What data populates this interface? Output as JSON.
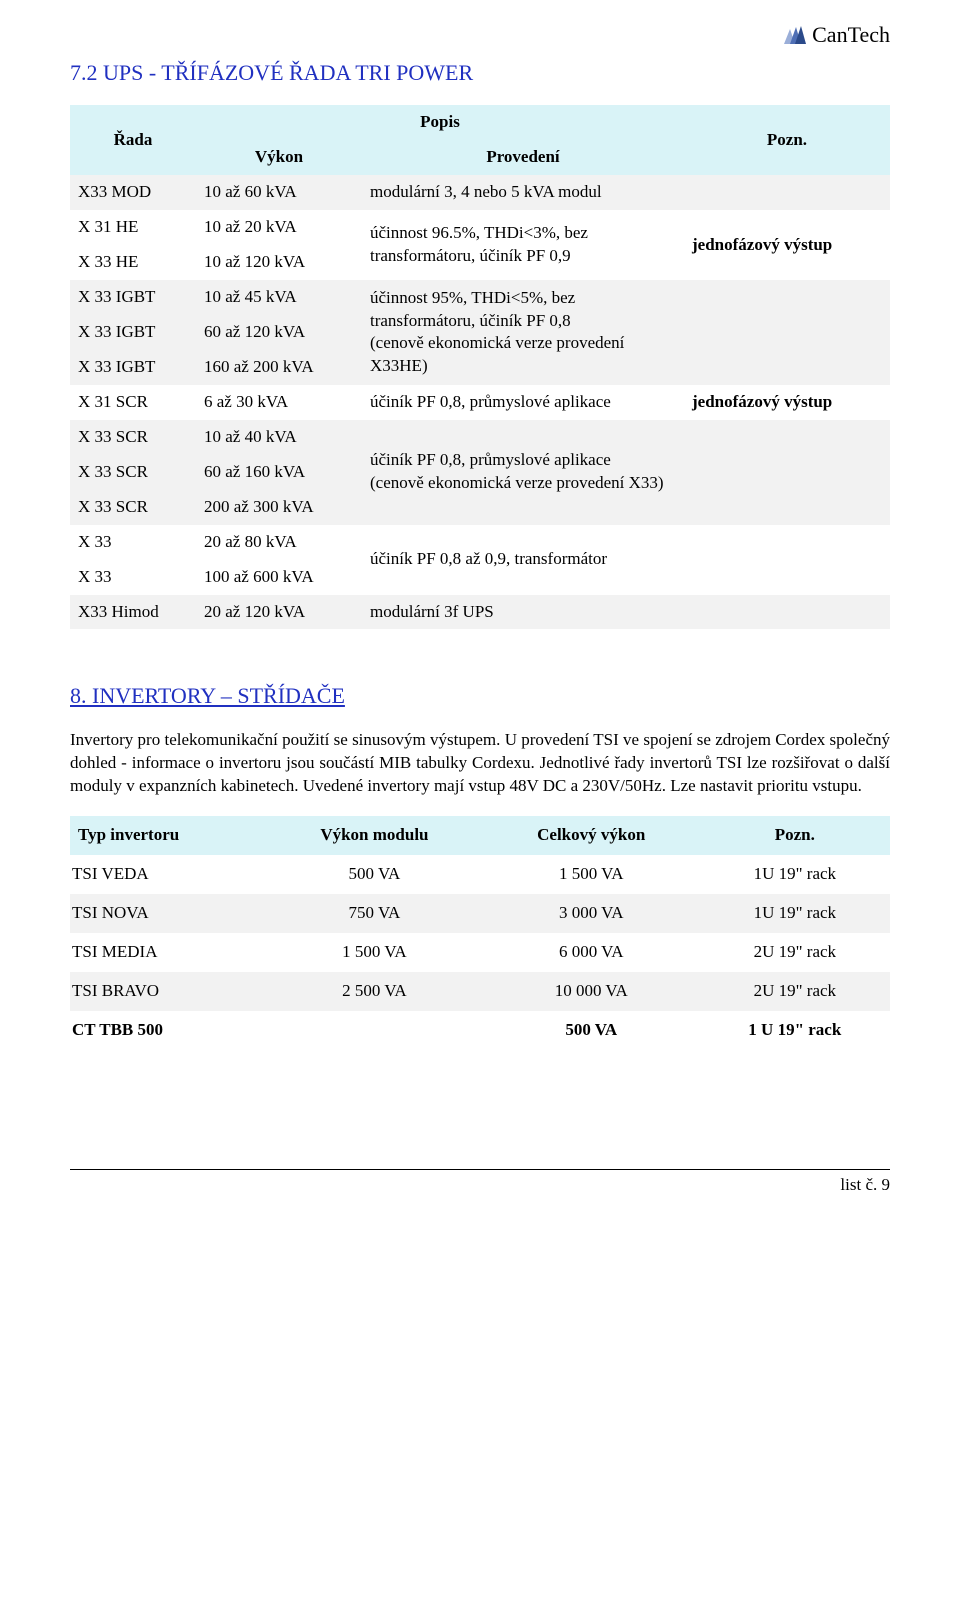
{
  "brand": {
    "name": "CanTech",
    "logo_colors": [
      "#2b4a8a",
      "#4f6fb5",
      "#9aaed8"
    ]
  },
  "section1": {
    "title": "7.2 UPS - TŘÍFÁZOVÉ ŘADA TRI POWER",
    "header": {
      "rada": "Řada",
      "popis": "Popis",
      "vykon": "Výkon",
      "provedeni": "Provedení",
      "pozn": "Pozn."
    },
    "groups": [
      {
        "shade": "odd",
        "rows": [
          {
            "rada": "X33 MOD",
            "vykon": "10 až 60 kVA"
          }
        ],
        "prov": "modulární 3, 4 nebo 5 kVA modul",
        "pozn": ""
      },
      {
        "shade": "even",
        "rows": [
          {
            "rada": "X 31 HE",
            "vykon": "10 až 20 kVA"
          },
          {
            "rada": "X 33 HE",
            "vykon": "10 až 120 kVA"
          }
        ],
        "prov": "účinnost 96.5%, THDi<3%, bez transformátoru, účiník PF 0,9",
        "pozn": "jednofázový výstup",
        "pozn_bold": true
      },
      {
        "shade": "odd",
        "rows": [
          {
            "rada": "X 33 IGBT",
            "vykon": "10 až 45 kVA"
          },
          {
            "rada": "X 33 IGBT",
            "vykon": "60 až 120 kVA"
          },
          {
            "rada": "X 33 IGBT",
            "vykon": "160 až 200 kVA"
          }
        ],
        "prov": "účinnost 95%, THDi<5%, bez transformátoru, účiník PF 0,8\n(cenově ekonomická verze provedení X33HE)",
        "pozn": ""
      },
      {
        "shade": "even",
        "rows": [
          {
            "rada": "X 31 SCR",
            "vykon": "6 až 30 kVA"
          }
        ],
        "prov": "účiník PF 0,8, průmyslové aplikace",
        "pozn": "jednofázový výstup",
        "pozn_bold": true
      },
      {
        "shade": "odd",
        "rows": [
          {
            "rada": "X 33 SCR",
            "vykon": "10 až 40 kVA"
          },
          {
            "rada": "X 33 SCR",
            "vykon": "60 až 160 kVA"
          },
          {
            "rada": "X 33 SCR",
            "vykon": "200 až 300 kVA"
          }
        ],
        "prov": "účiník PF 0,8, průmyslové aplikace\n(cenově ekonomická verze provedení X33)",
        "pozn": ""
      },
      {
        "shade": "even",
        "rows": [
          {
            "rada": "X 33",
            "vykon": "20 až 80 kVA"
          },
          {
            "rada": "X 33",
            "vykon": "100 až 600 kVA"
          }
        ],
        "prov": "účiník PF 0,8 až 0,9, transformátor",
        "pozn": ""
      },
      {
        "shade": "odd",
        "rows": [
          {
            "rada": "X33 Himod",
            "vykon": "20 až 120 kVA"
          }
        ],
        "prov": "modulární 3f UPS",
        "pozn": ""
      }
    ]
  },
  "section2": {
    "title": "8. INVERTORY – STŘÍDAČE",
    "body": "Invertory pro telekomunikační použití se sinusovým výstupem. U provedení TSI ve spojení se zdrojem Cordex společný dohled - informace o invertoru jsou součástí MIB tabulky Cordexu. Jednotlivé řady invertorů TSI lze rozšiřovat o další moduly v expanzních kabinetech. Uvedené invertory mají vstup 48V DC a 230V/50Hz. Lze nastavit prioritu vstupu.",
    "columns": [
      "Typ invertoru",
      "Výkon modulu",
      "Celkový výkon",
      "Pozn."
    ],
    "rows": [
      {
        "cells": [
          "TSI VEDA",
          "500 VA",
          "1 500 VA",
          "1U 19\" rack"
        ],
        "bold": false
      },
      {
        "cells": [
          "TSI NOVA",
          "750 VA",
          "3 000 VA",
          "1U 19\" rack"
        ],
        "bold": false
      },
      {
        "cells": [
          "TSI MEDIA",
          "1 500 VA",
          "6 000 VA",
          "2U 19\" rack"
        ],
        "bold": false
      },
      {
        "cells": [
          "TSI BRAVO",
          "2 500 VA",
          "10 000 VA",
          "2U 19\" rack"
        ],
        "bold": false
      },
      {
        "cells": [
          "CT TBB 500",
          "",
          "500 VA",
          "1 U 19\" rack"
        ],
        "bold": true
      }
    ]
  },
  "footer": {
    "text": "list č. 9"
  }
}
